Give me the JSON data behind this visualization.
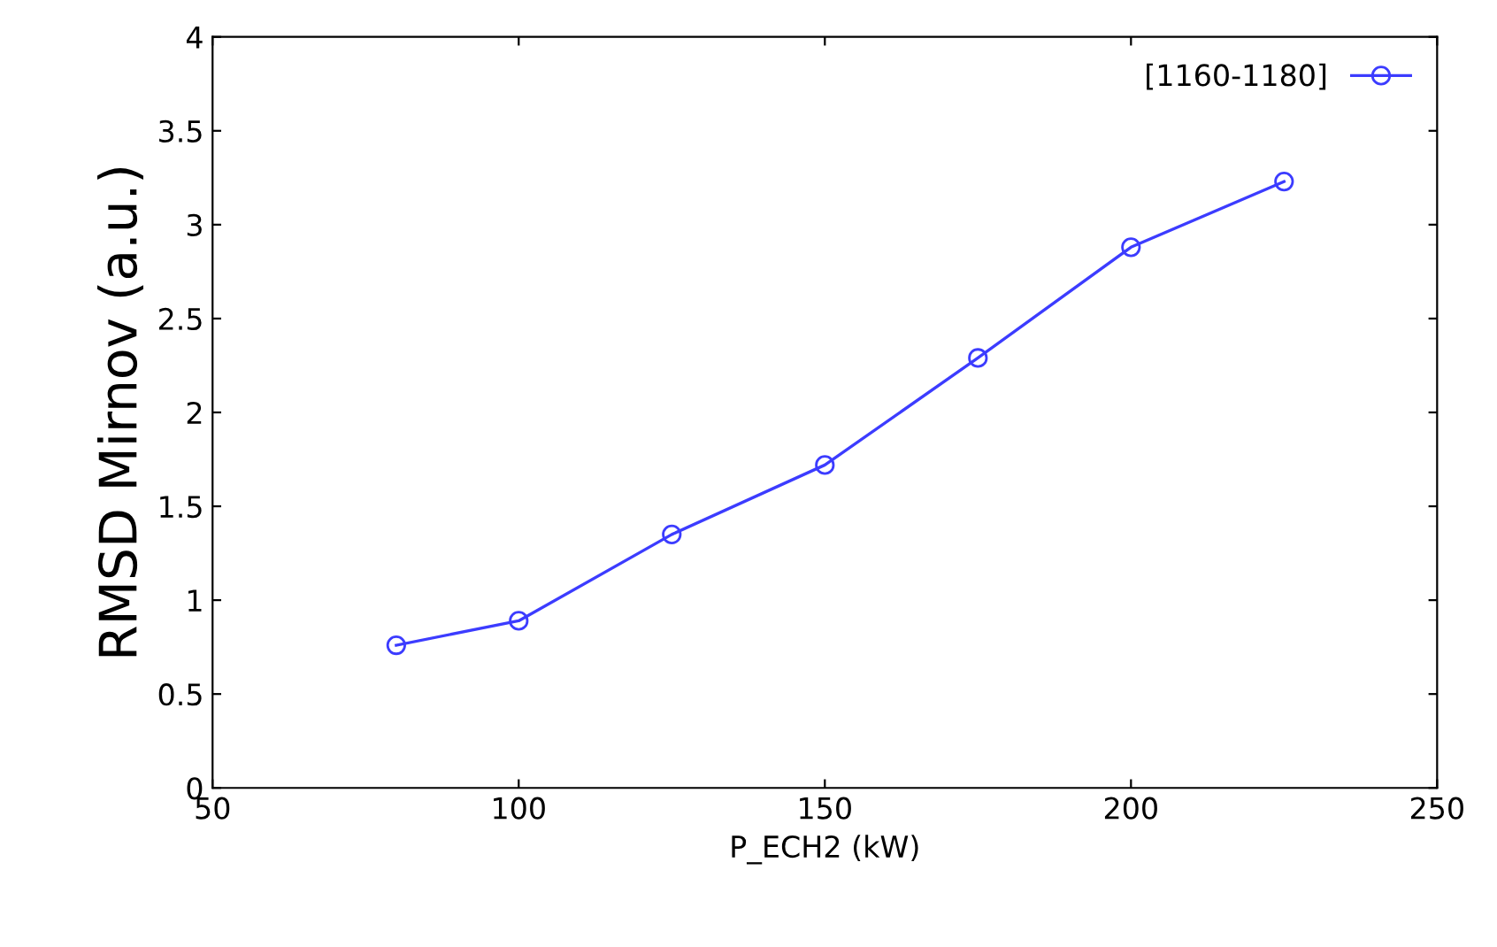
{
  "chart_data": {
    "type": "line",
    "xlabel": "P_ECH2 (kW)",
    "ylabel": "RMSD Mirnov (a.u.)",
    "x": [
      80,
      100,
      125,
      150,
      175,
      200,
      225
    ],
    "series": [
      {
        "name": "[1160-1180]",
        "color": "#3c3cff",
        "values": [
          0.76,
          0.89,
          1.35,
          1.72,
          2.29,
          2.88,
          3.23
        ]
      }
    ],
    "xlim": [
      50,
      250
    ],
    "xticks": [
      50,
      100,
      150,
      200,
      250
    ],
    "ylim": [
      0,
      4
    ],
    "yticks": [
      0,
      0.5,
      1,
      1.5,
      2,
      2.5,
      3,
      3.5,
      4
    ],
    "marker": "circle",
    "line_style": "solid",
    "grid": false,
    "legend": "top right"
  }
}
